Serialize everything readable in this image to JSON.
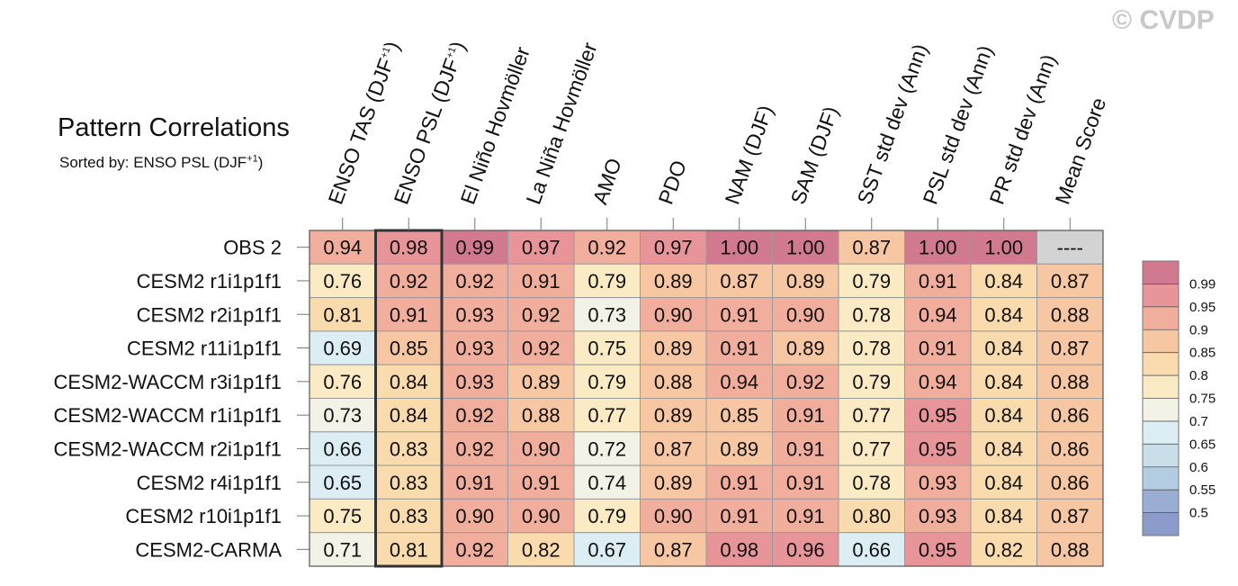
{
  "title": "Pattern Correlations",
  "subtitle": {
    "prefix": "Sorted by: ENSO PSL (DJF",
    "sup": "+1",
    "suffix": ")"
  },
  "watermark": "© CVDP",
  "chart_data": {
    "type": "heatmap",
    "columns": [
      {
        "label": "ENSO TAS (DJF",
        "sup": "+1",
        "suffix": ")"
      },
      {
        "label": "ENSO PSL (DJF",
        "sup": "+1",
        "suffix": ")"
      },
      {
        "label": "El Niño Hovmöller"
      },
      {
        "label": "La Niña Hovmöller"
      },
      {
        "label": "AMO"
      },
      {
        "label": "PDO"
      },
      {
        "label": "NAM (DJF)"
      },
      {
        "label": "SAM (DJF)"
      },
      {
        "label": "SST std dev (Ann)"
      },
      {
        "label": "PSL std dev (Ann)"
      },
      {
        "label": "PR std dev (Ann)"
      },
      {
        "label": "Mean Score"
      }
    ],
    "rows": [
      {
        "name": "OBS 2",
        "values": [
          "0.94",
          "0.98",
          "0.99",
          "0.97",
          "0.92",
          "0.97",
          "1.00",
          "1.00",
          "0.87",
          "1.00",
          "1.00",
          "----"
        ]
      },
      {
        "name": "CESM2 r1i1p1f1",
        "values": [
          "0.76",
          "0.92",
          "0.92",
          "0.91",
          "0.79",
          "0.89",
          "0.87",
          "0.89",
          "0.79",
          "0.91",
          "0.84",
          "0.87"
        ]
      },
      {
        "name": "CESM2 r2i1p1f1",
        "values": [
          "0.81",
          "0.91",
          "0.93",
          "0.92",
          "0.73",
          "0.90",
          "0.91",
          "0.90",
          "0.78",
          "0.94",
          "0.84",
          "0.88"
        ]
      },
      {
        "name": "CESM2 r11i1p1f1",
        "values": [
          "0.69",
          "0.85",
          "0.93",
          "0.92",
          "0.75",
          "0.89",
          "0.91",
          "0.89",
          "0.78",
          "0.91",
          "0.84",
          "0.87"
        ]
      },
      {
        "name": "CESM2-WACCM r3i1p1f1",
        "values": [
          "0.76",
          "0.84",
          "0.93",
          "0.89",
          "0.79",
          "0.88",
          "0.94",
          "0.92",
          "0.79",
          "0.94",
          "0.84",
          "0.88"
        ]
      },
      {
        "name": "CESM2-WACCM r1i1p1f1",
        "values": [
          "0.73",
          "0.84",
          "0.92",
          "0.88",
          "0.77",
          "0.89",
          "0.85",
          "0.91",
          "0.77",
          "0.95",
          "0.84",
          "0.86"
        ]
      },
      {
        "name": "CESM2-WACCM r2i1p1f1",
        "values": [
          "0.66",
          "0.83",
          "0.92",
          "0.90",
          "0.72",
          "0.87",
          "0.89",
          "0.91",
          "0.77",
          "0.95",
          "0.84",
          "0.86"
        ]
      },
      {
        "name": "CESM2 r4i1p1f1",
        "values": [
          "0.65",
          "0.83",
          "0.91",
          "0.91",
          "0.74",
          "0.89",
          "0.91",
          "0.91",
          "0.78",
          "0.93",
          "0.84",
          "0.86"
        ]
      },
      {
        "name": "CESM2 r10i1p1f1",
        "values": [
          "0.75",
          "0.83",
          "0.90",
          "0.90",
          "0.79",
          "0.90",
          "0.91",
          "0.91",
          "0.80",
          "0.93",
          "0.84",
          "0.87"
        ]
      },
      {
        "name": "CESM2-CARMA",
        "values": [
          "0.71",
          "0.81",
          "0.92",
          "0.82",
          "0.67",
          "0.87",
          "0.98",
          "0.96",
          "0.66",
          "0.95",
          "0.82",
          "0.88"
        ]
      }
    ],
    "sorted_column_index": 1,
    "missing_color": "#d3d3d3",
    "colorbar": {
      "labels": [
        "0.99",
        "0.95",
        "0.9",
        "0.85",
        "0.8",
        "0.75",
        "0.7",
        "0.65",
        "0.6",
        "0.55",
        "0.5"
      ],
      "thresholds": [
        0.99,
        0.95,
        0.9,
        0.85,
        0.8,
        0.75,
        0.7,
        0.65,
        0.6,
        0.55,
        0.5
      ],
      "colors": [
        "#d17a8f",
        "#e8959a",
        "#f2ae9c",
        "#f7c6a3",
        "#fadbae",
        "#fbebc5",
        "#f2f2e7",
        "#dceef4",
        "#c8dfea",
        "#b2cce2",
        "#9aaed4",
        "#8b9bcb"
      ]
    }
  }
}
